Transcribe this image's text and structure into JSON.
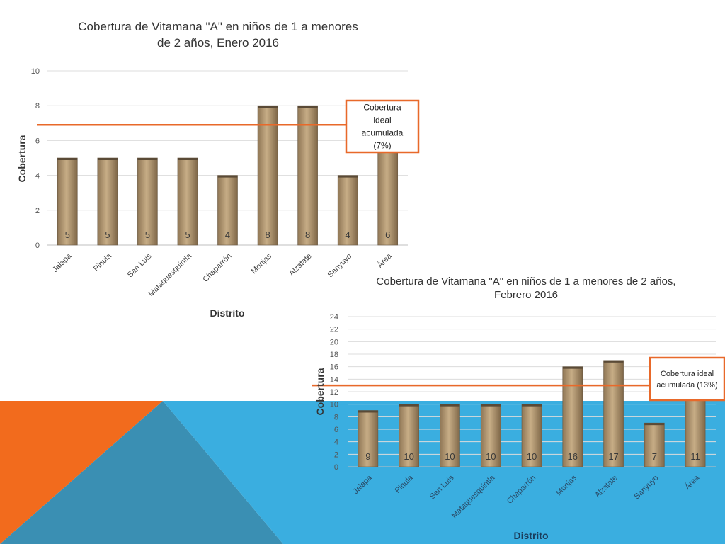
{
  "slide": {
    "colors": {
      "orange": "#f26b1d",
      "blue": "#3aaee0",
      "dark_blue": "#2c7fa6",
      "bar": "#c7ad86",
      "ideal_line": "#e8692a"
    }
  },
  "chart_data": [
    {
      "type": "bar",
      "title": "Cobertura de Vitamana \"A\" en niños de 1 a menores de 2 años, Enero 2016",
      "xlabel": "Distrito",
      "ylabel": "Cobertura",
      "categories": [
        "Jalapa",
        "Pinula",
        "San Luis",
        "Mataquesquintla",
        "Chaparrón",
        "Monjas",
        "Alzatate",
        "Sanyuyo",
        "Área"
      ],
      "values": [
        5,
        5,
        5,
        5,
        4,
        8,
        8,
        4,
        6
      ],
      "ylim": [
        0,
        10
      ],
      "yticks": [
        0,
        2,
        4,
        6,
        8,
        10
      ],
      "grid": true,
      "reference_line": {
        "value": 6.9,
        "label": "Cobertura ideal acumulada (7%)"
      }
    },
    {
      "type": "bar",
      "title": "Cobertura de Vitamana \"A\" en niños de 1 a menores de 2 años, Febrero 2016",
      "xlabel": "Distrito",
      "ylabel": "Cobertura",
      "categories": [
        "Jalapa",
        "Pinula",
        "San Luis",
        "Mataquesquintla",
        "Chaparrón",
        "Monjas",
        "Alzatate",
        "Sanyuyo",
        "Área"
      ],
      "values": [
        9,
        10,
        10,
        10,
        10,
        16,
        17,
        7,
        11
      ],
      "ylim": [
        0,
        24
      ],
      "yticks": [
        0,
        2,
        4,
        6,
        8,
        10,
        12,
        14,
        16,
        18,
        20,
        22,
        24
      ],
      "grid": true,
      "reference_line": {
        "value": 13,
        "label": "Cobertura ideal acumulada (13%)"
      }
    }
  ]
}
